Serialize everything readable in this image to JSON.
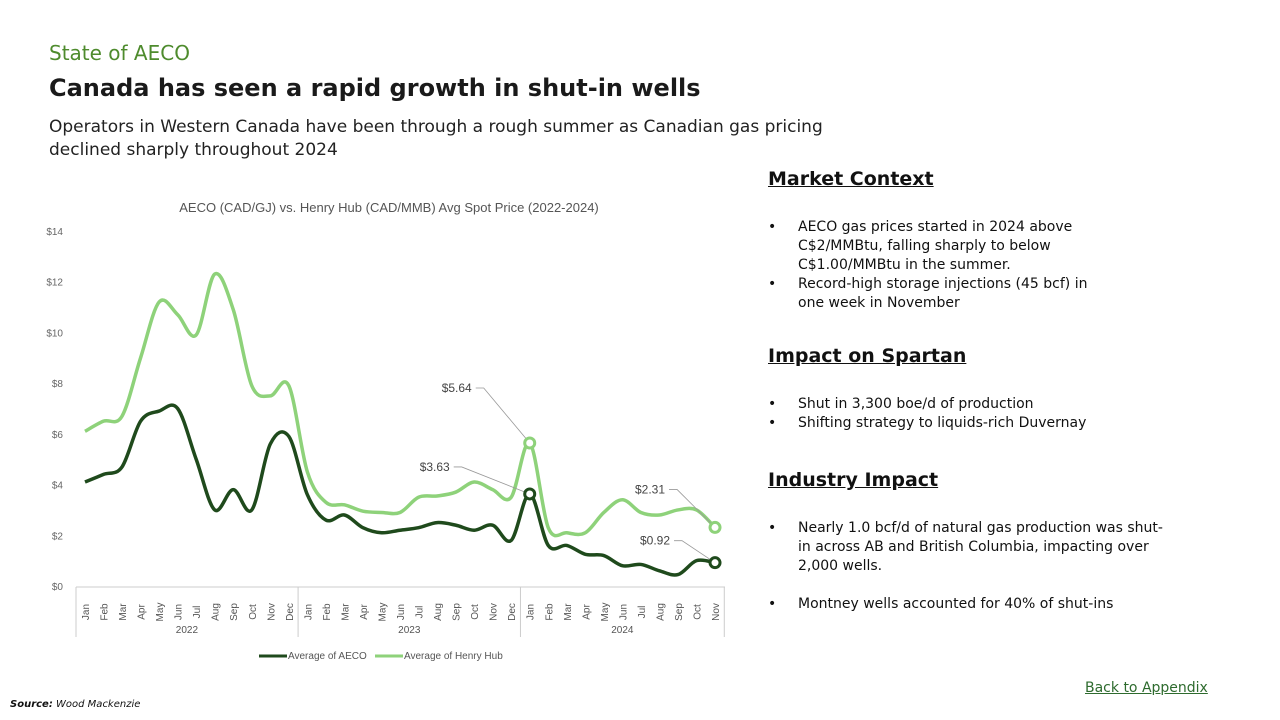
{
  "header": {
    "kicker": "State of AECO",
    "title": "Canada has seen a rapid growth in shut-in wells",
    "subtitle": "Operators in Western Canada have been through a rough summer as Canadian gas pricing declined sharply throughout 2024"
  },
  "sections": [
    {
      "title": "Market Context",
      "bullets": [
        "AECO gas prices started in 2024 above C$2/MMBtu, falling sharply to below C$1.00/MMBtu in the summer.",
        "Record-high storage injections (45 bcf) in one week in November"
      ]
    },
    {
      "title": "Impact on Spartan",
      "bullets": [
        "Shut in 3,300 boe/d of production",
        "Shifting strategy to liquids-rich Duvernay"
      ]
    },
    {
      "title": "Industry Impact",
      "bullets": [
        "Nearly 1.0 bcf/d of natural gas production was shut-in across AB and British Columbia, impacting over 2,000 wells.",
        "Montney wells accounted for 40% of shut-ins"
      ]
    }
  ],
  "footer": {
    "link": "Back to Appendix",
    "source_label": "Source:",
    "source": "Wood Mackenzie"
  },
  "chart_data": {
    "type": "line",
    "title": "AECO (CAD/GJ) vs. Henry Hub (CAD/MMB) Avg Spot Price (2022-2024)",
    "ylim": [
      0,
      14
    ],
    "yticks": [
      "$0",
      "$2",
      "$4",
      "$6",
      "$8",
      "$10",
      "$12",
      "$14"
    ],
    "grid": false,
    "legend": "bottom",
    "years": [
      {
        "label": "2022",
        "months": 12
      },
      {
        "label": "2023",
        "months": 12
      },
      {
        "label": "2024",
        "months": 11
      }
    ],
    "months": [
      "Jan",
      "Feb",
      "Mar",
      "Apr",
      "May",
      "Jun",
      "Jul",
      "Aug",
      "Sep",
      "Oct",
      "Nov",
      "Dec",
      "Jan",
      "Feb",
      "Mar",
      "Apr",
      "May",
      "Jun",
      "Jul",
      "Aug",
      "Sep",
      "Oct",
      "Nov",
      "Dec",
      "Jan",
      "Feb",
      "Mar",
      "Apr",
      "May",
      "Jun",
      "Jul",
      "Aug",
      "Sep",
      "Oct",
      "Nov"
    ],
    "series": [
      {
        "name": "Average of AECO",
        "color": "#1f4a1c",
        "values": [
          4.1,
          4.4,
          4.7,
          6.5,
          6.9,
          7.0,
          5.0,
          3.0,
          3.8,
          3.0,
          5.6,
          5.9,
          3.6,
          2.6,
          2.8,
          2.3,
          2.1,
          2.2,
          2.3,
          2.5,
          2.4,
          2.2,
          2.4,
          1.8,
          3.63,
          1.6,
          1.6,
          1.25,
          1.2,
          0.8,
          0.85,
          0.6,
          0.45,
          1.0,
          0.92
        ]
      },
      {
        "name": "Average of Henry Hub",
        "color": "#8ed27a",
        "values": [
          6.1,
          6.5,
          6.7,
          9.0,
          11.2,
          10.7,
          9.9,
          12.3,
          10.9,
          7.9,
          7.5,
          7.9,
          4.5,
          3.3,
          3.2,
          2.95,
          2.9,
          2.9,
          3.5,
          3.55,
          3.7,
          4.1,
          3.8,
          3.5,
          5.64,
          2.3,
          2.1,
          2.1,
          2.9,
          3.4,
          2.9,
          2.8,
          3.0,
          3.0,
          2.31
        ]
      }
    ],
    "annotations": [
      {
        "series": 1,
        "index": 24,
        "label": "$5.64"
      },
      {
        "series": 0,
        "index": 24,
        "label": "$3.63"
      },
      {
        "series": 1,
        "index": 34,
        "label": "$2.31"
      },
      {
        "series": 0,
        "index": 34,
        "label": "$0.92"
      }
    ]
  }
}
